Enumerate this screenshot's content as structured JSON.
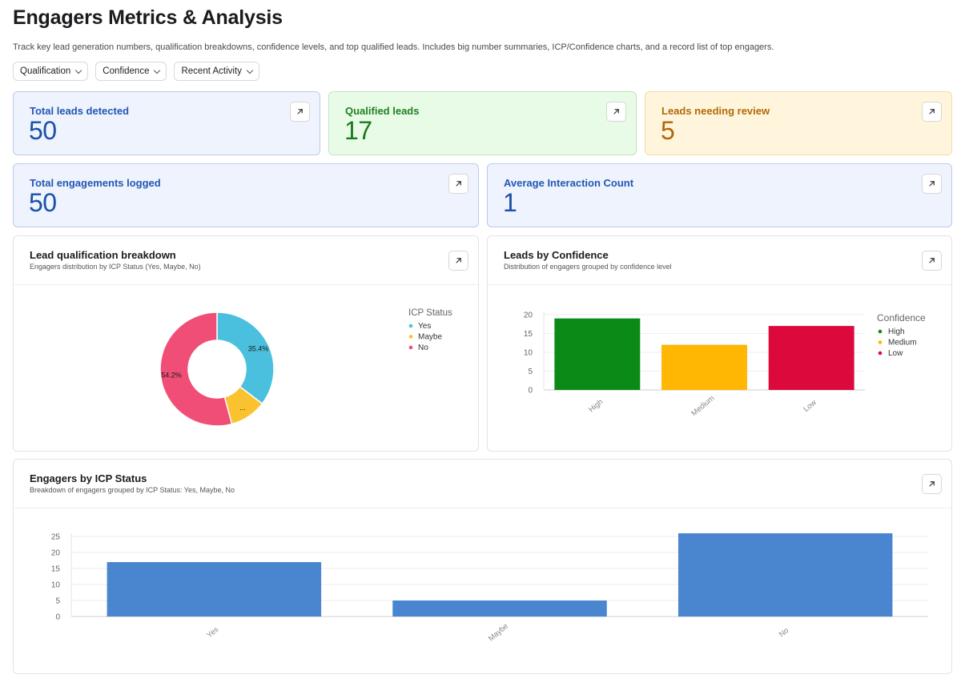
{
  "page": {
    "title": "Engagers Metrics & Analysis",
    "subtitle": "Track key lead generation numbers, qualification breakdowns, confidence levels, and top qualified leads. Includes big number summaries, ICP/Confidence charts, and a record list of top engagers."
  },
  "filters": [
    {
      "label": "Qualification"
    },
    {
      "label": "Confidence"
    },
    {
      "label": "Recent Activity"
    }
  ],
  "metrics": {
    "total_leads": {
      "label": "Total leads detected",
      "value": "50"
    },
    "qualified": {
      "label": "Qualified leads",
      "value": "17"
    },
    "review": {
      "label": "Leads needing review",
      "value": "5"
    },
    "engagements": {
      "label": "Total engagements logged",
      "value": "50"
    },
    "avg_interaction": {
      "label": "Average Interaction Count",
      "value": "1"
    }
  },
  "charts": {
    "qualification": {
      "title": "Lead qualification breakdown",
      "subtitle": "Engagers distribution by ICP Status (Yes, Maybe, No)"
    },
    "confidence": {
      "title": "Leads by Confidence",
      "subtitle": "Distribution of engagers grouped by confidence level"
    },
    "icp": {
      "title": "Engagers by ICP Status",
      "subtitle": "Breakdown of engagers grouped by ICP Status: Yes, Maybe, No"
    }
  },
  "chart_data": [
    {
      "type": "pie",
      "legend_title": "ICP Status",
      "legend_position": "top-right",
      "categories": [
        "Yes",
        "Maybe",
        "No"
      ],
      "values": [
        35.4,
        10.4,
        54.2
      ],
      "labels": [
        "35.4%",
        "...",
        "54.2%"
      ],
      "colors": [
        "#4bc0de",
        "#fbc22f",
        "#f04e77"
      ]
    },
    {
      "type": "bar",
      "legend_title": "Confidence",
      "legend_position": "top-right",
      "categories": [
        "High",
        "Medium",
        "Low"
      ],
      "values": [
        19,
        12,
        17
      ],
      "colors": [
        "#0c8a17",
        "#ffb703",
        "#dc0a3c"
      ],
      "ylim": [
        0,
        20
      ],
      "yticks": [
        0,
        5,
        10,
        15,
        20
      ],
      "grid": true
    },
    {
      "type": "bar",
      "categories": [
        "Yes",
        "Maybe",
        "No"
      ],
      "values": [
        17,
        5,
        26
      ],
      "colors": [
        "#4a86d0"
      ],
      "ylim": [
        0,
        25
      ],
      "yticks": [
        0,
        5,
        10,
        15,
        20,
        25
      ],
      "grid": true
    }
  ]
}
